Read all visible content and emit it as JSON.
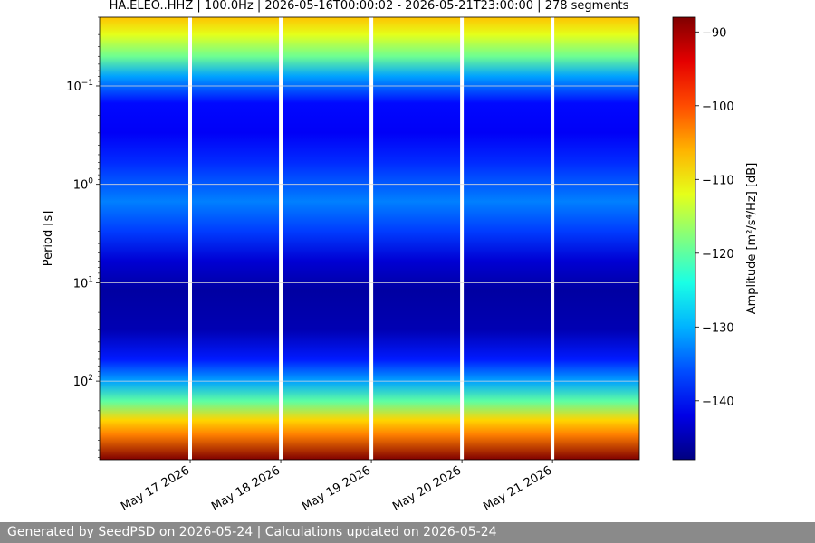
{
  "chart_data": {
    "type": "heatmap",
    "title": "HA.ELEO..HHZ | 100.0Hz | 2026-05-16T00:00:02 - 2026-05-21T23:00:00 | 278 segments",
    "ylabel": "Period [s]",
    "yscale": "log",
    "y_ticks": [
      {
        "value": 0.1,
        "base": "10",
        "exp": "−1"
      },
      {
        "value": 1,
        "base": "10",
        "exp": "0"
      },
      {
        "value": 10,
        "base": "10",
        "exp": "1"
      },
      {
        "value": 100,
        "base": "10",
        "exp": "2"
      }
    ],
    "ylim": [
      0.02,
      630
    ],
    "y_inverted": true,
    "x_ticks": [
      "May 17 2026",
      "May 18 2026",
      "May 19 2026",
      "May 20 2026",
      "May 21 2026"
    ],
    "xlim": [
      "2026-05-16T00:00:02",
      "2026-05-21T23:00:00"
    ],
    "data_gaps": [
      "2026-05-17",
      "2026-05-18",
      "2026-05-19",
      "2026-05-20",
      "2026-05-21"
    ],
    "colorbar": {
      "label": "Amplitude [m²/s⁴/Hz] [dB]",
      "colormap": "jet",
      "range": [
        -148,
        -88
      ],
      "ticks": [
        -90,
        -100,
        -110,
        -120,
        -130,
        -140
      ]
    },
    "period_profile_db": [
      {
        "period": 0.02,
        "db": -107
      },
      {
        "period": 0.03,
        "db": -112
      },
      {
        "period": 0.05,
        "db": -119
      },
      {
        "period": 0.08,
        "db": -131
      },
      {
        "period": 0.15,
        "db": -140
      },
      {
        "period": 0.3,
        "db": -141
      },
      {
        "period": 0.6,
        "db": -138
      },
      {
        "period": 1.5,
        "db": -133
      },
      {
        "period": 3,
        "db": -137
      },
      {
        "period": 6,
        "db": -143
      },
      {
        "period": 12,
        "db": -146
      },
      {
        "period": 30,
        "db": -145
      },
      {
        "period": 60,
        "db": -139
      },
      {
        "period": 100,
        "db": -131
      },
      {
        "period": 160,
        "db": -120
      },
      {
        "period": 250,
        "db": -108
      },
      {
        "period": 350,
        "db": -103
      },
      {
        "period": 630,
        "db": -88
      }
    ],
    "grid": true
  },
  "footer": {
    "text": "Generated by SeedPSD on 2026-05-24 | Calculations updated on 2026-05-24"
  }
}
